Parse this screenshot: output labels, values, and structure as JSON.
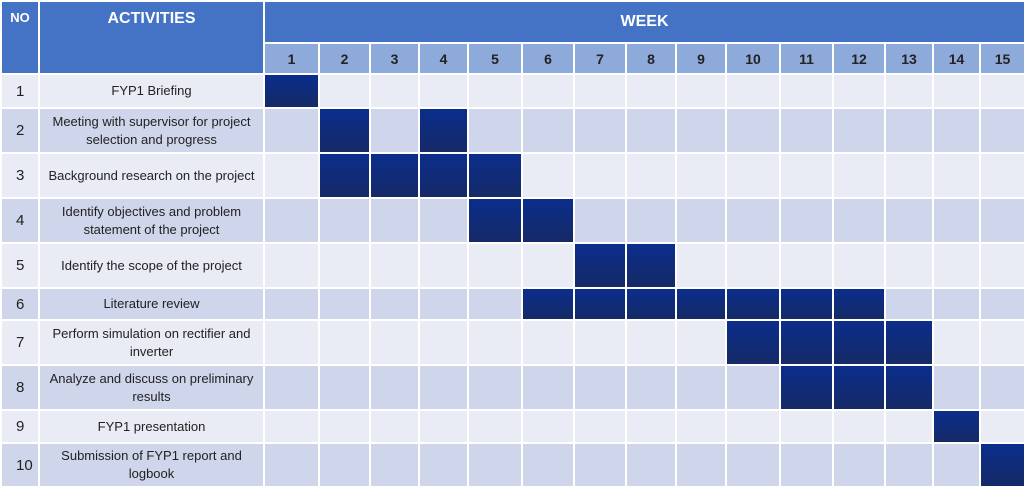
{
  "header": {
    "no": "NO",
    "activities": "ACTIVITIES",
    "week": "WEEK"
  },
  "weeks": [
    "1",
    "2",
    "3",
    "4",
    "5",
    "6",
    "7",
    "8",
    "9",
    "10",
    "11",
    "12",
    "13",
    "14",
    "15"
  ],
  "colors": {
    "header": "#4472c4",
    "week_row": "#8eaadb",
    "row_light": "#e9ebf5",
    "row_dark": "#cfd5ea",
    "bar": "#0b2d8c"
  },
  "rows": [
    {
      "no": "1",
      "activity": "FYP1 Briefing",
      "weeks": [
        1
      ]
    },
    {
      "no": "2",
      "activity": "Meeting with supervisor for project selection and progress",
      "weeks": [
        2,
        4
      ]
    },
    {
      "no": "3",
      "activity": "Background research on the project",
      "weeks": [
        2,
        3,
        4,
        5
      ]
    },
    {
      "no": "4",
      "activity": "Identify objectives and problem statement of the project",
      "weeks": [
        5,
        6
      ]
    },
    {
      "no": "5",
      "activity": "Identify the scope of the project",
      "weeks": [
        7,
        8
      ]
    },
    {
      "no": "6",
      "activity": "Literature review",
      "weeks": [
        6,
        7,
        8,
        9,
        10,
        11,
        12
      ]
    },
    {
      "no": "7",
      "activity": "Perform simulation on rectifier and inverter",
      "weeks": [
        10,
        11,
        12,
        13
      ]
    },
    {
      "no": "8",
      "activity": "Analyze and discuss on preliminary results",
      "weeks": [
        11,
        12,
        13
      ]
    },
    {
      "no": "9",
      "activity": "FYP1 presentation",
      "weeks": [
        14
      ]
    },
    {
      "no": "10",
      "activity": "Submission of FYP1 report and logbook",
      "weeks": [
        15
      ]
    }
  ]
}
